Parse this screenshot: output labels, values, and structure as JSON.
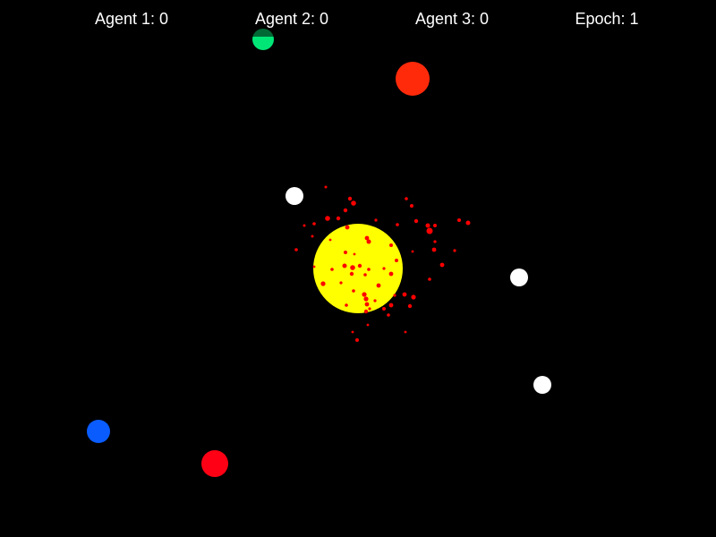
{
  "hud": {
    "agent1": {
      "label": "Agent 1:",
      "score": "0"
    },
    "agent2": {
      "label": "Agent 2:",
      "score": "0"
    },
    "agent3": {
      "label": "Agent 3:",
      "score": "0"
    },
    "epoch": {
      "label": "Epoch:",
      "value": "1"
    }
  },
  "colors": {
    "background": "#000000",
    "sun": "#ffff00",
    "particles": "#ff0000",
    "neutral_body": "#ffffff",
    "agent_green": "#00e676",
    "agent_orange_red": "#ff2a0a",
    "agent_blue": "#0a5cff",
    "agent_red": "#ff0014"
  }
}
